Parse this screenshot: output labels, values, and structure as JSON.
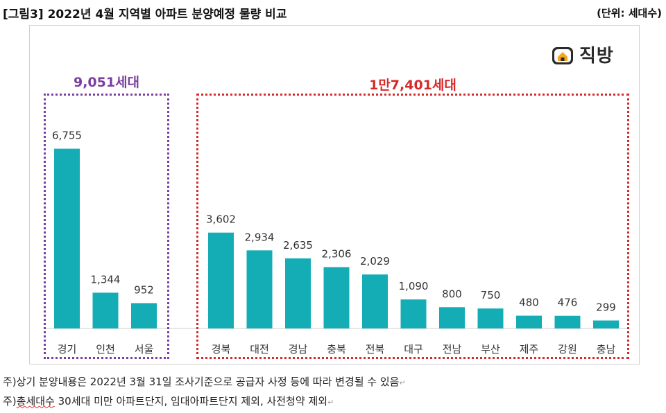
{
  "figure": {
    "title": "[그림3] 2022년 4월 지역별 아파트 분양예정 물량 비교",
    "unit": "(단위: 세대수)"
  },
  "logo": {
    "text": "직방",
    "icon": "zigbang-house-icon"
  },
  "groups": {
    "left": {
      "total": "9,051세대",
      "color": "#7a3fa0"
    },
    "right": {
      "total": "1만7,401세대",
      "color": "#d62a2a"
    }
  },
  "chart_data": {
    "type": "bar",
    "title": "",
    "xlabel": "",
    "ylabel": "",
    "ylim": [
      0,
      7500
    ],
    "grid": false,
    "legend": "none",
    "bar_color": "#14adb6",
    "categories": [
      "경기",
      "인천",
      "서울",
      "경북",
      "대전",
      "경남",
      "충북",
      "전북",
      "대구",
      "전남",
      "부산",
      "제주",
      "강원",
      "충남"
    ],
    "values": [
      6755,
      1344,
      952,
      3602,
      2934,
      2635,
      2306,
      2029,
      1090,
      800,
      750,
      480,
      476,
      299
    ],
    "value_labels": [
      "6,755",
      "1,344",
      "952",
      "3,602",
      "2,934",
      "2,635",
      "2,306",
      "2,029",
      "1,090",
      "800",
      "750",
      "480",
      "476",
      "299"
    ]
  },
  "notes": {
    "note1": "주)상기 분양내용은 2022년 3월 31일 조사기준으로 공급자 사정 등에 따라 변경될 수 있음",
    "note2_prefix": "주)",
    "note2_underlined": "총세대수",
    "note2_rest": " 30세대 미만 아파트단지, 임대아파트단지 제외, 사전청약 제외"
  }
}
